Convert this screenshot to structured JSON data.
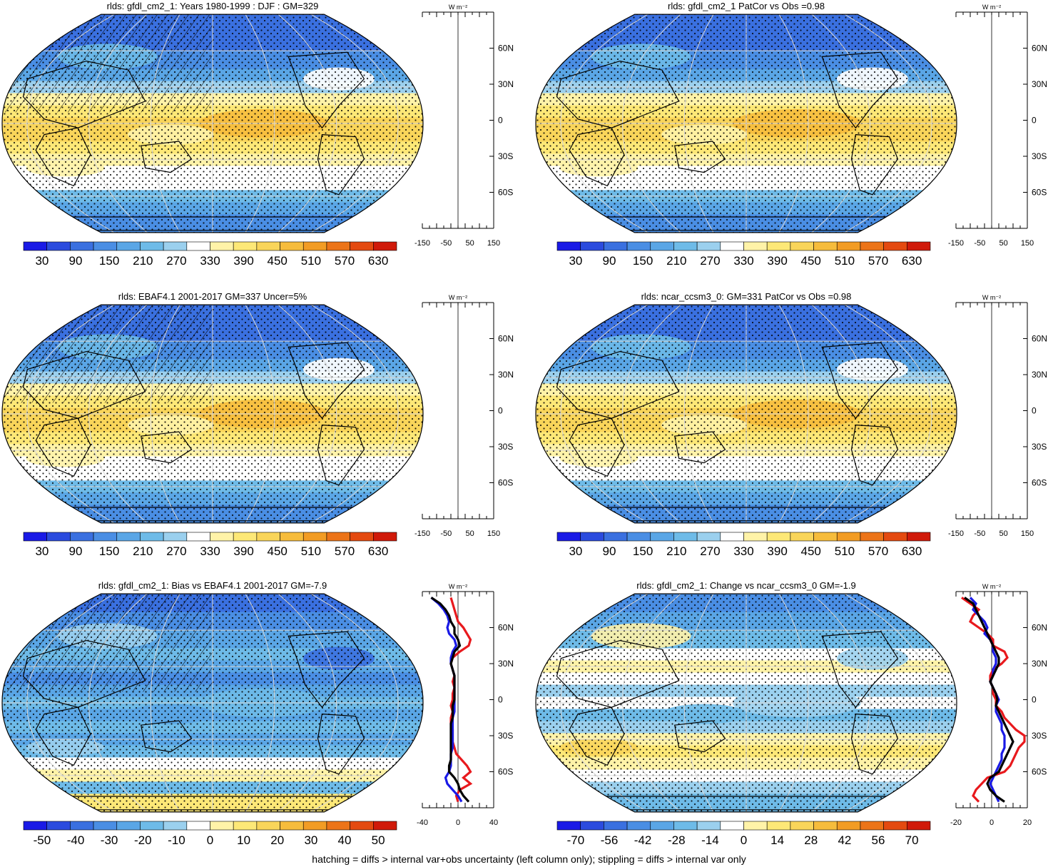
{
  "footnote": "hatching = diffs > internal var+obs uncertainty (left column only); stippling = diffs > internal var only",
  "colors": {
    "fill_palette": [
      "#1a1ae6",
      "#2b4bde",
      "#3a70e0",
      "#4a8ee4",
      "#5aa6e6",
      "#6ebbe8",
      "#9bd0ee",
      "#ffffff",
      "#fff3a8",
      "#fde877",
      "#f9d55a",
      "#f6bc3c",
      "#f29c24",
      "#ec7418",
      "#e44a10",
      "#d01a0a"
    ],
    "land_outline": "#000000",
    "grid": "#d8d8d8",
    "profile_model": "#e8191d",
    "profile_obs": "#1a1ae6",
    "profile_mean": "#000000"
  },
  "chart_data": [
    {
      "type": "heatmap",
      "title": "rlds: gfdl_cm2_1: Years 1980-1999 : DJF : GM=329",
      "colorbar": {
        "labels": [
          "30",
          "90",
          "150",
          "210",
          "270",
          "330",
          "390",
          "450",
          "510",
          "570",
          "630"
        ]
      },
      "profile": {
        "unit": "W m⁻²",
        "xticks": [
          "-150",
          "-50",
          "50",
          "150"
        ],
        "yticks": [
          "60N",
          "30N",
          "0",
          "30S",
          "60S"
        ],
        "lines": []
      }
    },
    {
      "type": "heatmap",
      "title": "rlds: gfdl_cm2_1 PatCor vs Obs =0.98",
      "colorbar": {
        "labels": [
          "30",
          "90",
          "150",
          "210",
          "270",
          "330",
          "390",
          "450",
          "510",
          "570",
          "630"
        ]
      },
      "profile": {
        "unit": "W m⁻²",
        "xticks": [
          "-150",
          "-50",
          "50",
          "150"
        ],
        "yticks": [
          "60N",
          "30N",
          "0",
          "30S",
          "60S"
        ],
        "lines": []
      }
    },
    {
      "type": "heatmap",
      "title": "rlds: EBAF4.1 2001-2017 GM=337 Uncer=5%",
      "colorbar": {
        "labels": [
          "30",
          "90",
          "150",
          "210",
          "270",
          "330",
          "390",
          "450",
          "510",
          "570",
          "630"
        ]
      },
      "profile": {
        "unit": "W m⁻²",
        "xticks": [
          "-150",
          "-50",
          "50",
          "150"
        ],
        "yticks": [
          "60N",
          "30N",
          "0",
          "30S",
          "60S"
        ],
        "lines": []
      }
    },
    {
      "type": "heatmap",
      "title": "rlds: ncar_ccsm3_0: GM=331 PatCor vs Obs =0.98",
      "colorbar": {
        "labels": [
          "30",
          "90",
          "150",
          "210",
          "270",
          "330",
          "390",
          "450",
          "510",
          "570",
          "630"
        ]
      },
      "profile": {
        "unit": "W m⁻²",
        "xticks": [
          "-150",
          "-50",
          "50",
          "150"
        ],
        "yticks": [
          "60N",
          "30N",
          "0",
          "30S",
          "60S"
        ],
        "lines": []
      }
    },
    {
      "type": "heatmap",
      "title": "rlds: gfdl_cm2_1: Bias vs EBAF4.1 2001-2017 GM=-7.9",
      "colorbar": {
        "labels": [
          "-50",
          "-40",
          "-30",
          "-20",
          "-10",
          "0",
          "10",
          "20",
          "30",
          "40",
          "50"
        ]
      },
      "profile": {
        "unit": "W m⁻²",
        "xticks": [
          "-40",
          "0",
          "40"
        ],
        "yticks": [
          "60N",
          "30N",
          "0",
          "30S",
          "60S"
        ],
        "xlim": [
          -40,
          40
        ],
        "lines": [
          {
            "color": "#e8191d",
            "lat": [
              85,
              80,
              75,
              70,
              65,
              60,
              55,
              50,
              45,
              40,
              35,
              30,
              25,
              20,
              15,
              10,
              5,
              0,
              -5,
              -10,
              -15,
              -20,
              -25,
              -30,
              -35,
              -40,
              -45,
              -50,
              -55,
              -60,
              -65,
              -70,
              -75,
              -80,
              -85
            ],
            "val": [
              -8,
              -6,
              -4,
              -2,
              0,
              6,
              10,
              14,
              12,
              2,
              -6,
              -8,
              -6,
              -4,
              -6,
              -4,
              -6,
              -6,
              -8,
              -6,
              -8,
              -8,
              -6,
              -6,
              -6,
              -4,
              -2,
              4,
              10,
              14,
              6,
              14,
              2,
              -2,
              0
            ]
          },
          {
            "color": "#1a1ae6",
            "lat": [
              85,
              80,
              75,
              70,
              65,
              60,
              55,
              50,
              45,
              40,
              35,
              30,
              25,
              20,
              15,
              10,
              5,
              0,
              -5,
              -10,
              -15,
              -20,
              -25,
              -30,
              -35,
              -40,
              -45,
              -50,
              -55,
              -60,
              -65,
              -70,
              -75,
              -80,
              -85
            ],
            "val": [
              -30,
              -22,
              -16,
              -12,
              -10,
              -12,
              -10,
              -4,
              -2,
              -6,
              -8,
              -8,
              -6,
              -4,
              -4,
              -4,
              -4,
              -4,
              -4,
              -4,
              -6,
              -6,
              -6,
              -6,
              -6,
              -6,
              -8,
              -8,
              -8,
              -10,
              -14,
              -12,
              -6,
              0,
              4
            ]
          },
          {
            "color": "#000000",
            "lat": [
              85,
              80,
              75,
              70,
              65,
              60,
              55,
              50,
              45,
              40,
              35,
              30,
              25,
              20,
              15,
              10,
              5,
              0,
              -5,
              -10,
              -15,
              -20,
              -25,
              -30,
              -35,
              -40,
              -45,
              -50,
              -55,
              -60,
              -65,
              -70,
              -75,
              -80,
              -85
            ],
            "val": [
              -30,
              -20,
              -14,
              -10,
              -8,
              -4,
              -4,
              0,
              2,
              -4,
              -6,
              -8,
              -6,
              -4,
              -4,
              -4,
              -4,
              -4,
              -6,
              -6,
              -6,
              -8,
              -8,
              -8,
              -8,
              -8,
              -8,
              -8,
              -10,
              -10,
              -4,
              0,
              2,
              6,
              12
            ]
          }
        ]
      }
    },
    {
      "type": "heatmap",
      "title": "rlds: gfdl_cm2_1: Change vs ncar_ccsm3_0 GM=-1.9",
      "colorbar": {
        "labels": [
          "-70",
          "-56",
          "-42",
          "-28",
          "-14",
          "0",
          "14",
          "28",
          "42",
          "56",
          "70"
        ]
      },
      "profile": {
        "unit": "W m⁻²",
        "xticks": [
          "-20",
          "0",
          "20"
        ],
        "yticks": [
          "60N",
          "30N",
          "0",
          "30S",
          "60S"
        ],
        "xlim": [
          -30,
          20
        ],
        "lines": [
          {
            "color": "#e8191d",
            "lat": [
              85,
              80,
              75,
              70,
              65,
              60,
              55,
              50,
              45,
              40,
              35,
              30,
              25,
              20,
              15,
              10,
              5,
              0,
              -5,
              -10,
              -15,
              -20,
              -25,
              -30,
              -35,
              -40,
              -45,
              -50,
              -55,
              -60,
              -65,
              -70,
              -75,
              -80,
              -85
            ],
            "val": [
              -26,
              -20,
              -14,
              -18,
              -20,
              -14,
              -8,
              -4,
              -4,
              4,
              6,
              2,
              -4,
              -6,
              -6,
              -4,
              -4,
              -2,
              -2,
              2,
              4,
              8,
              12,
              18,
              18,
              14,
              12,
              10,
              8,
              4,
              -8,
              -12,
              -16,
              -18,
              -14
            ]
          },
          {
            "color": "#1a1ae6",
            "lat": [
              85,
              80,
              75,
              70,
              65,
              60,
              55,
              50,
              45,
              40,
              35,
              30,
              25,
              20,
              15,
              10,
              5,
              0,
              -5,
              -10,
              -15,
              -20,
              -25,
              -30,
              -35,
              -40,
              -45,
              -50,
              -55,
              -60,
              -65,
              -70,
              -75,
              -80,
              -85
            ],
            "val": [
              -20,
              -16,
              -18,
              -14,
              -10,
              -8,
              -10,
              -6,
              -4,
              -4,
              -2,
              -2,
              -4,
              -4,
              -6,
              -4,
              -2,
              0,
              -2,
              -2,
              0,
              2,
              2,
              4,
              4,
              4,
              2,
              2,
              0,
              -2,
              -4,
              -6,
              -4,
              -2,
              0
            ]
          },
          {
            "color": "#000000",
            "lat": [
              85,
              80,
              75,
              70,
              65,
              60,
              55,
              50,
              45,
              40,
              35,
              30,
              25,
              20,
              15,
              10,
              5,
              0,
              -5,
              -10,
              -15,
              -20,
              -25,
              -30,
              -35,
              -40,
              -45,
              -50,
              -55,
              -60,
              -65,
              -70,
              -75,
              -80,
              -85
            ],
            "val": [
              -24,
              -18,
              -16,
              -14,
              -12,
              -10,
              -8,
              -6,
              -4,
              -2,
              0,
              0,
              -2,
              -4,
              -6,
              -4,
              -2,
              -1,
              -2,
              0,
              2,
              4,
              6,
              8,
              10,
              8,
              6,
              4,
              2,
              0,
              -6,
              -8,
              -6,
              -2,
              4
            ]
          }
        ]
      }
    }
  ]
}
